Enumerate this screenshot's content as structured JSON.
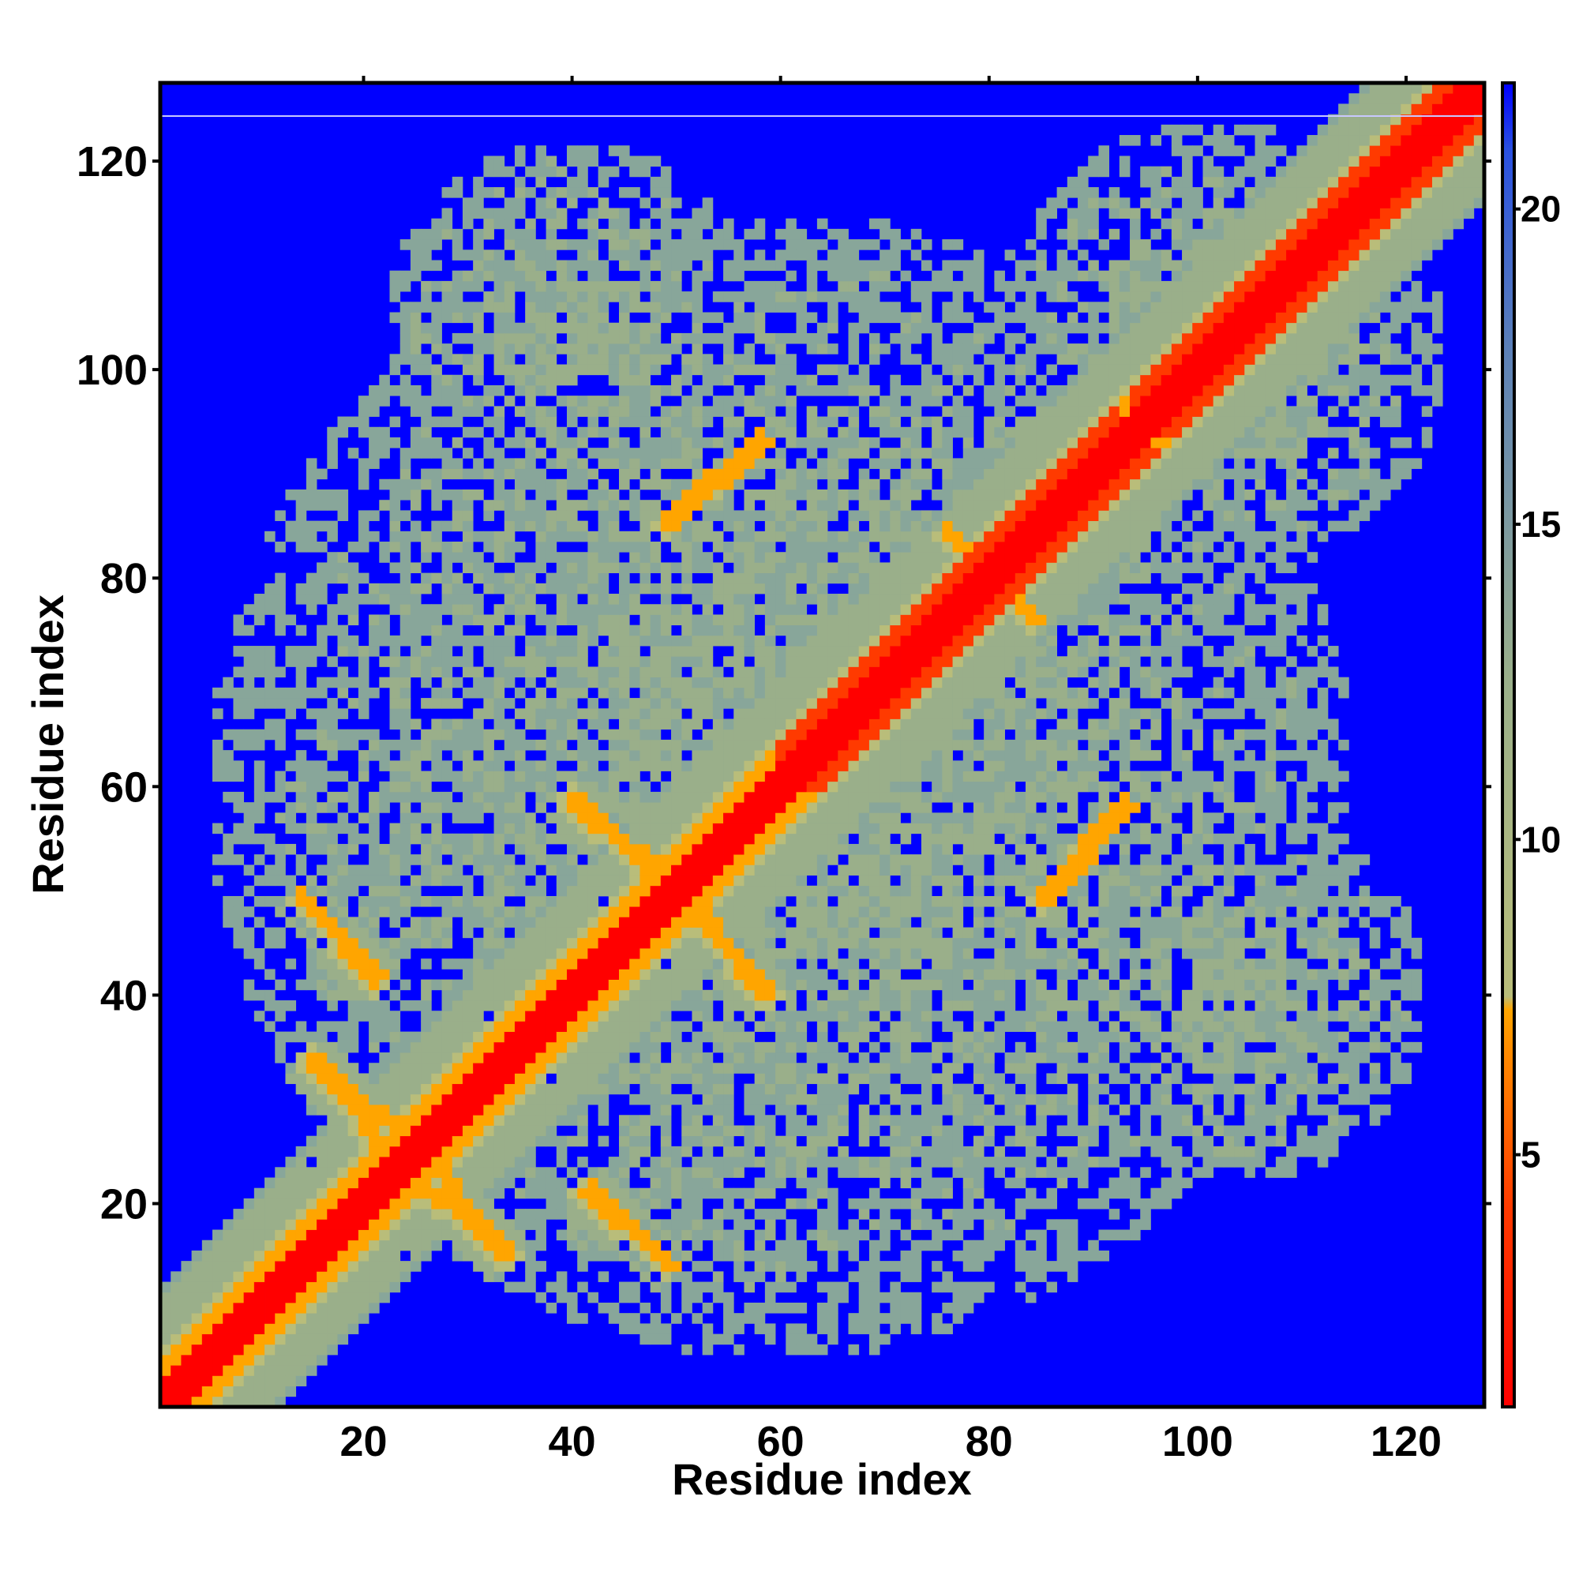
{
  "chart_data": {
    "type": "heatmap",
    "title": "",
    "xlabel": "Residue index",
    "ylabel": "Residue index",
    "xlim": [
      1,
      127
    ],
    "ylim": [
      1,
      127
    ],
    "x_ticks": [
      20,
      40,
      60,
      80,
      100,
      120
    ],
    "y_ticks": [
      20,
      40,
      60,
      80,
      100,
      120
    ],
    "grid": false,
    "colorbar": {
      "orientation": "vertical",
      "position": "right",
      "ticks": [
        5,
        10,
        15,
        20
      ],
      "range": [
        1,
        22
      ],
      "colors": [
        "#ff0000",
        "#ff8c00",
        "#9aaf8a",
        "#5b80b8",
        "#0000ff"
      ]
    },
    "background_value": 22,
    "diagonal_value": 1,
    "contact_features": [
      {
        "kind": "diagonal",
        "value": 1,
        "halo_value": 9
      },
      {
        "kind": "helix-band",
        "from": [
          60,
          60
        ],
        "to": [
          92,
          92
        ],
        "value": 3.5
      },
      {
        "kind": "helix-band",
        "from": [
          94,
          94
        ],
        "to": [
          126,
          126
        ],
        "value": 3.5
      },
      {
        "kind": "antidiagonal",
        "from": [
          14,
          49
        ],
        "to": [
          21,
          42
        ],
        "value": 6.5
      },
      {
        "kind": "antidiagonal",
        "from": [
          15,
          34
        ],
        "to": [
          22,
          25
        ],
        "value": 6.5
      },
      {
        "kind": "antidiagonal",
        "from": [
          26,
          24
        ],
        "to": [
          33,
          15
        ],
        "value": 6.5
      },
      {
        "kind": "antidiagonal",
        "from": [
          41,
          21
        ],
        "to": [
          49,
          14
        ],
        "value": 6.5
      },
      {
        "kind": "antidiagonal",
        "from": [
          40,
          59
        ],
        "to": [
          48,
          51
        ],
        "value": 6.5
      },
      {
        "kind": "antidiagonal",
        "from": [
          51,
          49
        ],
        "to": [
          58,
          40
        ],
        "value": 6.5
      },
      {
        "kind": "parallel",
        "from": [
          49,
          85
        ],
        "to": [
          58,
          93
        ],
        "value": 6.5
      },
      {
        "kind": "parallel",
        "from": [
          85,
          49
        ],
        "to": [
          93,
          58
        ],
        "value": 6.5
      },
      {
        "kind": "antidiagonal",
        "from": [
          76,
          84
        ],
        "to": [
          84,
          76
        ],
        "value": 6.5
      },
      {
        "kind": "region",
        "center": [
          60,
          60
        ],
        "radius": 55,
        "value": 12
      },
      {
        "kind": "region",
        "center": [
          102,
          102
        ],
        "radius": 22,
        "value": 12
      },
      {
        "kind": "region",
        "center": [
          104,
          40
        ],
        "radius": 18,
        "value": 12
      },
      {
        "kind": "region",
        "center": [
          40,
          104
        ],
        "radius": 18,
        "value": 12
      }
    ]
  }
}
